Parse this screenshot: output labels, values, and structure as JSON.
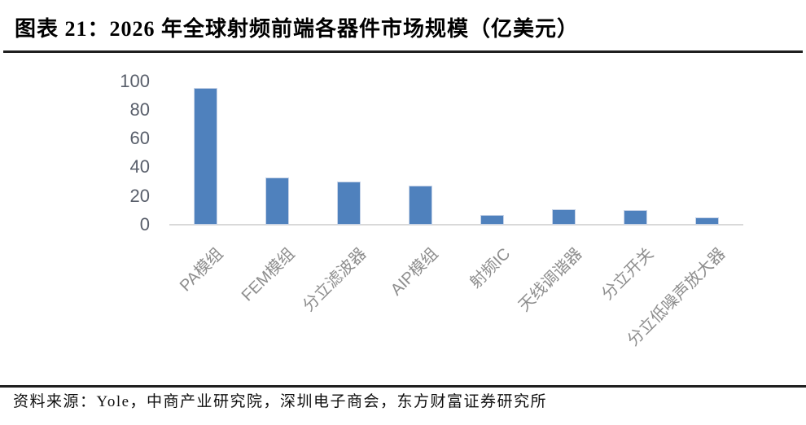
{
  "figure": {
    "label_title": "图表 21：2026 年全球射频前端各器件市场规模（亿美元）",
    "source_note": "资料来源：Yole，中商产业研究院，深圳电子商会，东方财富证券研究所"
  },
  "colors": {
    "bar_fill": "#4f81bd",
    "bar_border": "#c8d4e8",
    "axis_line": "#d9d9d9",
    "y_tick_text": "#595f6b",
    "x_label_text": "#8e8e8e",
    "rule": "#1f1f1f",
    "title_text": "#000000"
  },
  "chart_data": {
    "type": "bar",
    "title": "2026 年全球射频前端各器件市场规模（亿美元）",
    "unit": "亿美元",
    "categories": [
      "PA模组",
      "FEM模组",
      "分立滤波器",
      "AIP模组",
      "射频IC",
      "天线调谐器",
      "分立开关",
      "分立低噪声放大器"
    ],
    "values": [
      95,
      33,
      30,
      27,
      7,
      11,
      10,
      5
    ],
    "xlabel": "",
    "ylabel": "",
    "ylim": [
      0,
      100
    ],
    "yticks": [
      0,
      20,
      40,
      60,
      80,
      100
    ],
    "grid": false,
    "legend": "none",
    "bar_color": "#4f81bd"
  }
}
